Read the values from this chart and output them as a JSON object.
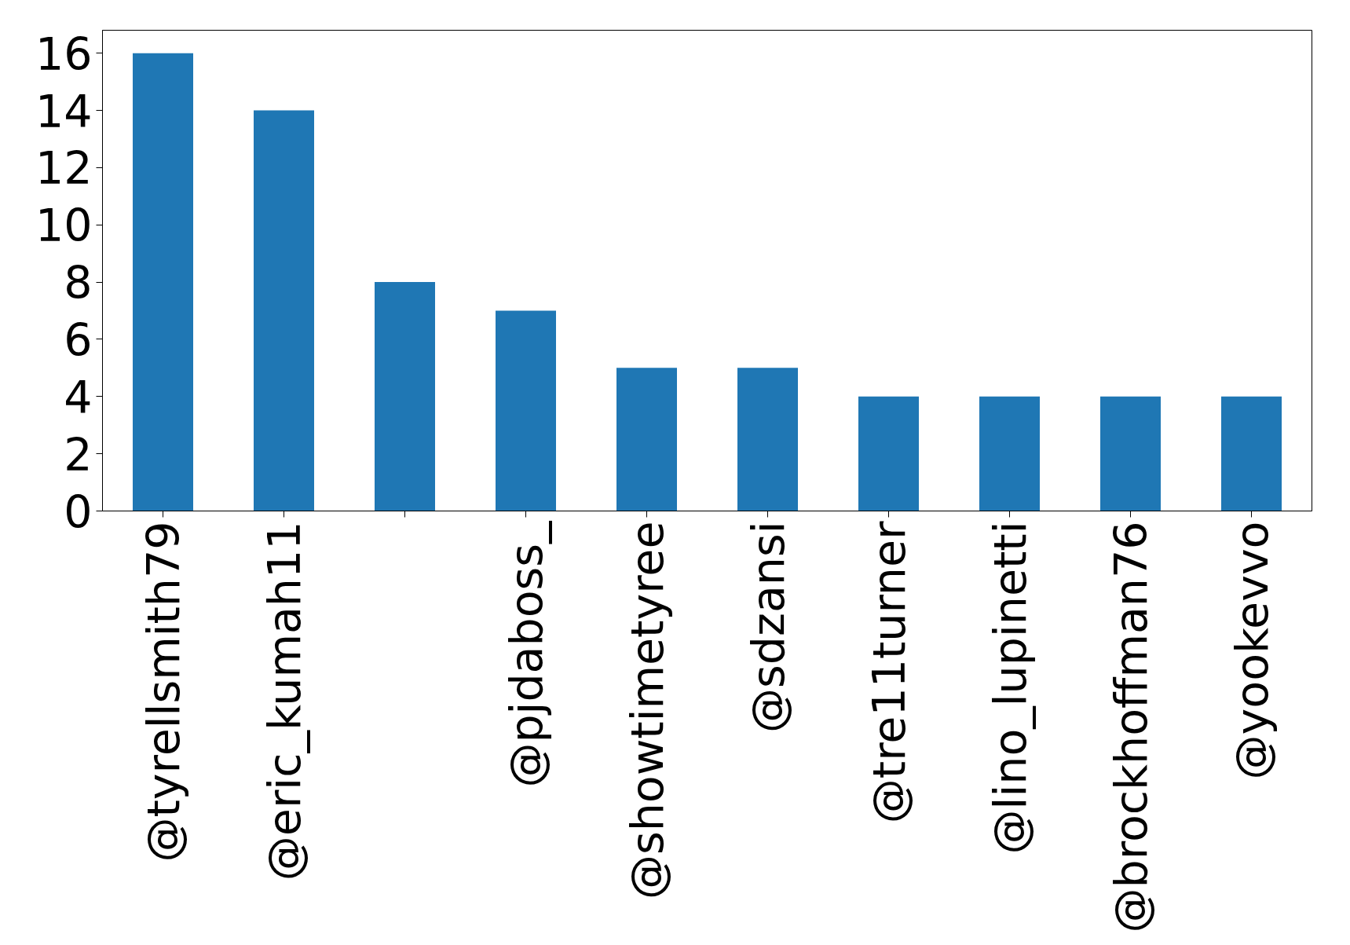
{
  "chart_data": {
    "type": "bar",
    "categories": [
      "@tyrellsmith79",
      "@eric_kumah11",
      null,
      "@pjdaboss_",
      "@showtimetyree",
      "@sdzansi",
      "@tre11turner",
      "@lino_lupinetti",
      "@brockhoffman76",
      "@yookevvo"
    ],
    "values": [
      16,
      14,
      8,
      7,
      5,
      5,
      4,
      4,
      4,
      4
    ],
    "color": "#1f77b4",
    "ylim": [
      0,
      16.8
    ],
    "yticks": [
      0,
      2,
      4,
      6,
      8,
      10,
      12,
      14,
      16
    ],
    "grid": false
  }
}
